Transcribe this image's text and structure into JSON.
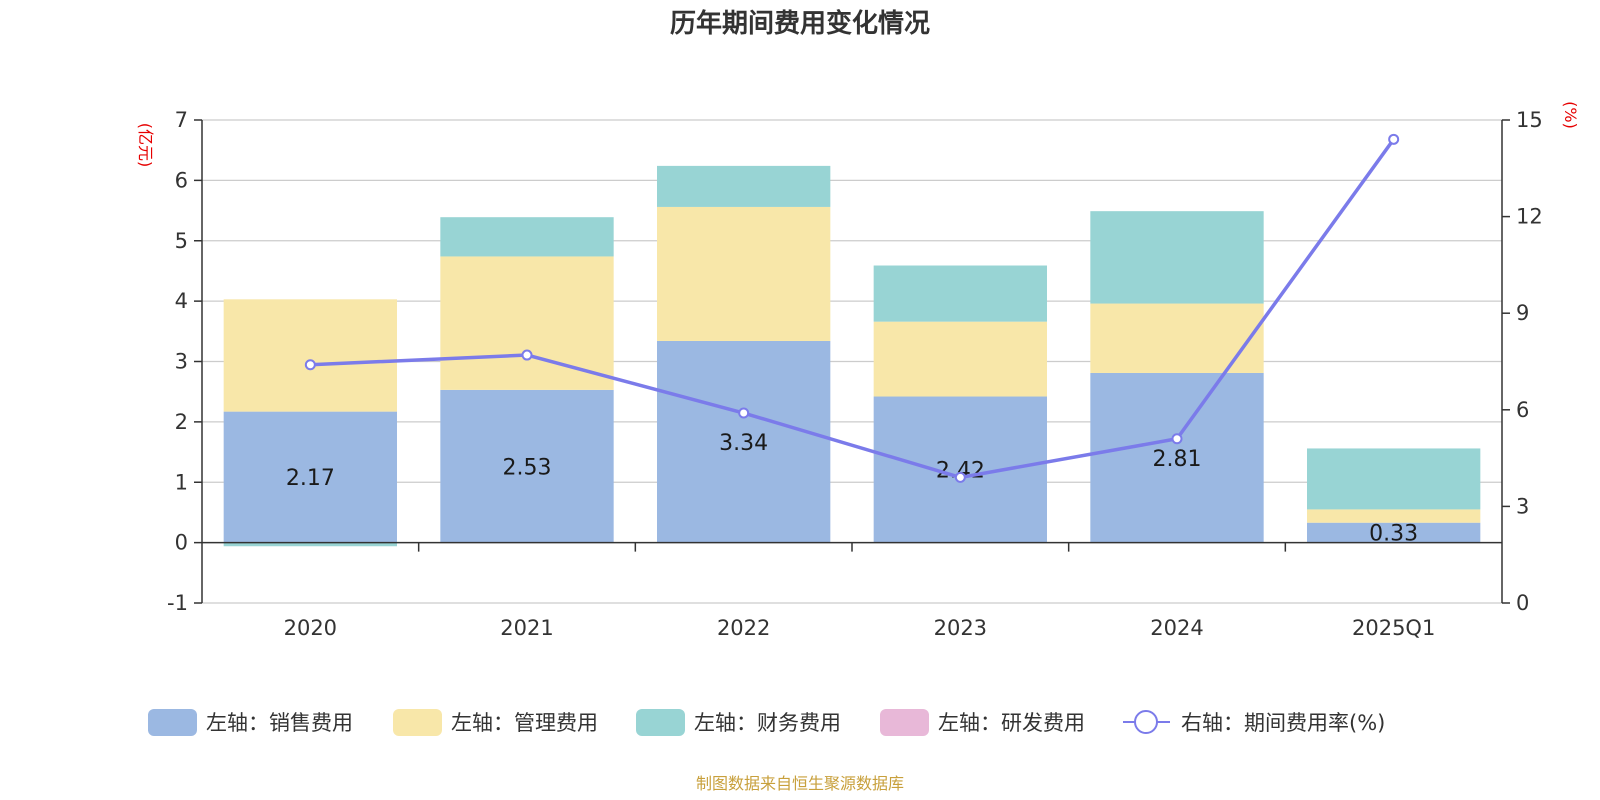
{
  "chart_data": {
    "type": "bar",
    "title": "历年期间费用变化情况",
    "categories": [
      "2020",
      "2021",
      "2022",
      "2023",
      "2024",
      "2025Q1"
    ],
    "stacked": true,
    "left_axis": {
      "unit": "(亿元)",
      "ylim": [
        -1,
        7
      ],
      "ticks": [
        -1,
        0,
        1,
        2,
        3,
        4,
        5,
        6,
        7
      ]
    },
    "right_axis": {
      "unit": "(%)",
      "ylim": [
        0,
        15
      ],
      "ticks": [
        0,
        3,
        6,
        9,
        12,
        15
      ]
    },
    "series": [
      {
        "name": "左轴：销售费用",
        "axis": "left",
        "type": "bar",
        "color": "#9bb8e2",
        "values": [
          2.17,
          2.53,
          3.34,
          2.42,
          2.81,
          0.33
        ]
      },
      {
        "name": "左轴：管理费用",
        "axis": "left",
        "type": "bar",
        "color": "#f8e7a9",
        "values": [
          1.86,
          2.21,
          2.22,
          1.24,
          1.15,
          0.22
        ]
      },
      {
        "name": "左轴：财务费用",
        "axis": "left",
        "type": "bar",
        "color": "#98d4d4",
        "values": [
          -0.06,
          0.65,
          0.68,
          0.93,
          1.53,
          1.01
        ]
      },
      {
        "name": "左轴：研发费用",
        "axis": "left",
        "type": "bar",
        "color": "#e8b8d8",
        "values": [
          0,
          0,
          0,
          0,
          0,
          0
        ]
      },
      {
        "name": "右轴：期间费用率(%)",
        "axis": "right",
        "type": "line",
        "color": "#7b7bea",
        "values": [
          7.4,
          7.7,
          5.9,
          3.9,
          5.1,
          14.4
        ]
      }
    ],
    "data_labels": [
      "2.17",
      "2.53",
      "3.34",
      "2.42",
      "2.81",
      "0.33"
    ],
    "legend_position": "bottom",
    "grid": true
  },
  "source_note": "制图数据来自恒生聚源数据库"
}
